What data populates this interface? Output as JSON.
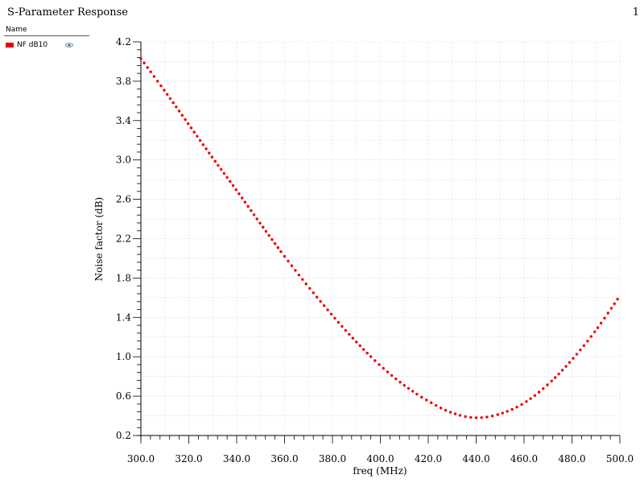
{
  "header": {
    "title": "S-Parameter Response",
    "page": "1"
  },
  "legend": {
    "header": "Name",
    "items": [
      {
        "label": "NF dB10",
        "color": "#ee0000",
        "icon": "eye-icon"
      }
    ]
  },
  "chart_data": {
    "type": "line",
    "xlabel": "freq (MHz)",
    "ylabel": "Noise factor (dB)",
    "xlim": [
      300,
      500
    ],
    "ylim": [
      0.2,
      4.2
    ],
    "xticks": [
      "300.0",
      "320.0",
      "340.0",
      "360.0",
      "380.0",
      "400.0",
      "420.0",
      "440.0",
      "460.0",
      "480.0",
      "500.0"
    ],
    "yticks": [
      "0.2",
      "0.6",
      "1.0",
      "1.4",
      "1.8",
      "2.2",
      "2.6",
      "3.0",
      "3.4",
      "3.8",
      "4.2"
    ],
    "grid": true,
    "series": [
      {
        "name": "NF dB10",
        "color": "#ee0000",
        "x": [
          300,
          310,
          320,
          330,
          340,
          350,
          360,
          370,
          380,
          390,
          400,
          410,
          420,
          430,
          440,
          450,
          460,
          470,
          480,
          490,
          500
        ],
        "y": [
          4.03,
          3.7,
          3.36,
          3.02,
          2.69,
          2.35,
          2.02,
          1.71,
          1.42,
          1.15,
          0.91,
          0.71,
          0.55,
          0.43,
          0.38,
          0.42,
          0.53,
          0.72,
          0.97,
          1.27,
          1.62
        ]
      }
    ]
  }
}
